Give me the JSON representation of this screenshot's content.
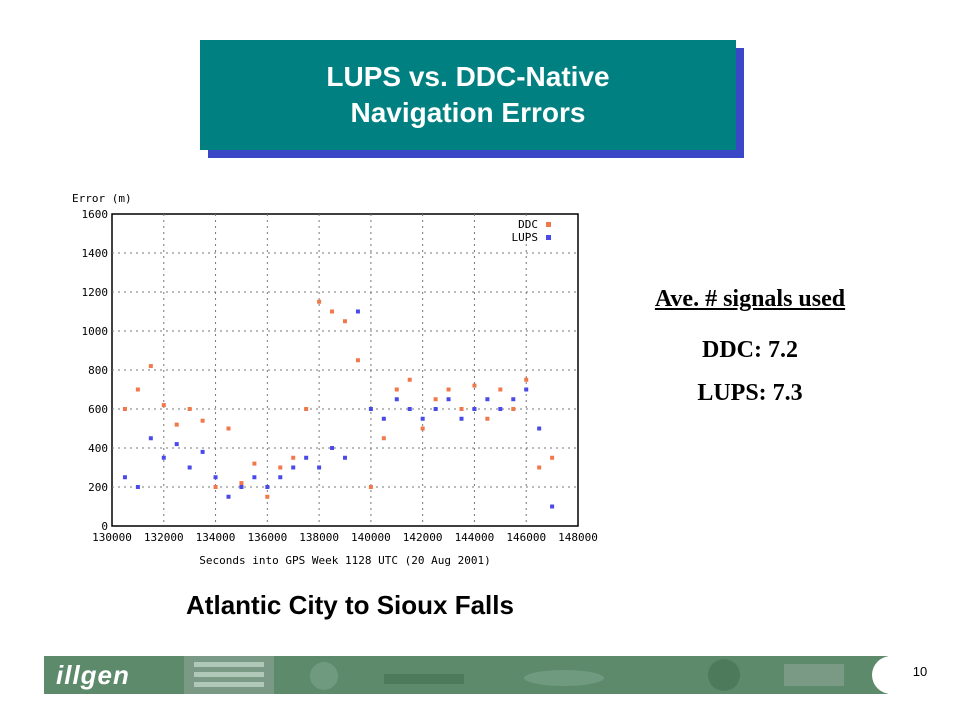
{
  "title": {
    "line1": "LUPS vs. DDC-Native",
    "line2": "Navigation Errors"
  },
  "caption": "Atlantic City to Sioux Falls",
  "signals": {
    "header": "Ave. # signals used",
    "ddc": "DDC: 7.2",
    "lups": "LUPS: 7.3"
  },
  "footer": {
    "logo": "illgen",
    "page_number": "10"
  },
  "colors": {
    "title_bg": "#008080",
    "title_shadow": "#3a48c8",
    "ddc": "#f0784a",
    "lups": "#4a4ae8",
    "footer": "#5d8a6b"
  },
  "chart_data": {
    "type": "scatter",
    "ylabel": "Error (m)",
    "xlabel": "Seconds into GPS Week 1128 UTC (20 Aug 2001)",
    "xlim": [
      130000,
      148000
    ],
    "ylim": [
      0,
      1600
    ],
    "x_ticks": [
      "130000",
      "132000",
      "134000",
      "136000",
      "138000",
      "140000",
      "142000",
      "144000",
      "146000",
      "148000"
    ],
    "y_ticks": [
      "0",
      "200",
      "400",
      "600",
      "800",
      "1000",
      "1200",
      "1400",
      "1600"
    ],
    "grid": true,
    "legend": "top-right",
    "series": [
      {
        "name": "DDC",
        "color": "#f0784a",
        "x": [
          130500,
          131000,
          131500,
          132000,
          132500,
          133000,
          133500,
          134000,
          134500,
          135000,
          135500,
          136000,
          136500,
          137000,
          137500,
          138000,
          138500,
          139000,
          139500,
          140000,
          140500,
          141000,
          141500,
          142000,
          142500,
          143000,
          143500,
          144000,
          144500,
          145000,
          145500,
          146000,
          146500,
          147000
        ],
        "y": [
          600,
          700,
          820,
          620,
          520,
          600,
          540,
          200,
          500,
          220,
          320,
          150,
          300,
          350,
          600,
          1150,
          1100,
          1050,
          850,
          200,
          450,
          700,
          750,
          500,
          650,
          700,
          600,
          720,
          550,
          700,
          600,
          750,
          300,
          350
        ]
      },
      {
        "name": "LUPS",
        "color": "#4a4ae8",
        "x": [
          130500,
          131000,
          131500,
          132000,
          132500,
          133000,
          133500,
          134000,
          134500,
          135000,
          135500,
          136000,
          136500,
          137000,
          137500,
          138000,
          138500,
          139000,
          139500,
          140000,
          140500,
          141000,
          141500,
          142000,
          142500,
          143000,
          143500,
          144000,
          144500,
          145000,
          145500,
          146000,
          146500,
          147000
        ],
        "y": [
          250,
          200,
          450,
          350,
          420,
          300,
          380,
          250,
          150,
          200,
          250,
          200,
          250,
          300,
          350,
          300,
          400,
          350,
          1100,
          600,
          550,
          650,
          600,
          550,
          600,
          650,
          550,
          600,
          650,
          600,
          650,
          700,
          500,
          100
        ]
      }
    ]
  }
}
